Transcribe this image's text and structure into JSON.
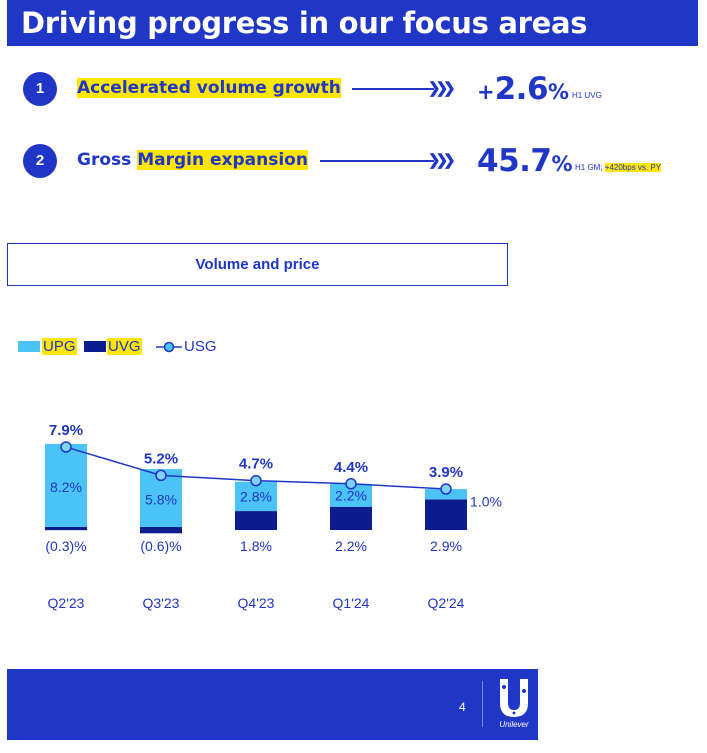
{
  "header": {
    "title": "Driving progress in our focus areas"
  },
  "focus_areas": [
    {
      "number": "1",
      "label_pre": "",
      "label_hl": "Accelerated volume growth",
      "value_prefix": "+",
      "value_main": "2.6",
      "value_pct": "%",
      "note": "H1 UVG",
      "note_hl": ""
    },
    {
      "number": "2",
      "label_pre": "Gross ",
      "label_hl": "Margin expansion",
      "value_prefix": "",
      "value_main": "45.7",
      "value_pct": "%",
      "note": "H1 GM; ",
      "note_hl": "+420bps vs. PY"
    }
  ],
  "section": {
    "title": "Volume and price"
  },
  "legend": {
    "upg": "UPG",
    "uvg": "UVG",
    "usg": "USG"
  },
  "colors": {
    "brand": "#1f36c7",
    "upg": "#4cc3f7",
    "uvg": "#0d1c8c",
    "highlight": "#ffe600"
  },
  "chart_data": {
    "type": "bar",
    "stacked": true,
    "categories": [
      "Q2'23",
      "Q3'23",
      "Q4'23",
      "Q1'24",
      "Q2'24"
    ],
    "series": [
      {
        "name": "UPG",
        "values": [
          8.2,
          5.8,
          2.8,
          2.2,
          1.0
        ],
        "labels": [
          "8.2%",
          "5.8%",
          "2.8%",
          "2.2%",
          "1.0%"
        ]
      },
      {
        "name": "UVG",
        "values": [
          -0.3,
          -0.6,
          1.8,
          2.2,
          2.9
        ],
        "labels": [
          "(0.3)%",
          "(0.6)%",
          "1.8%",
          "2.2%",
          "2.9%"
        ]
      },
      {
        "name": "USG",
        "values": [
          7.9,
          5.2,
          4.7,
          4.4,
          3.9
        ],
        "labels": [
          "7.9%",
          "5.2%",
          "4.7%",
          "4.4%",
          "3.9%"
        ]
      }
    ]
  },
  "footer": {
    "page_number": "4",
    "logo_text": "Unilever"
  }
}
